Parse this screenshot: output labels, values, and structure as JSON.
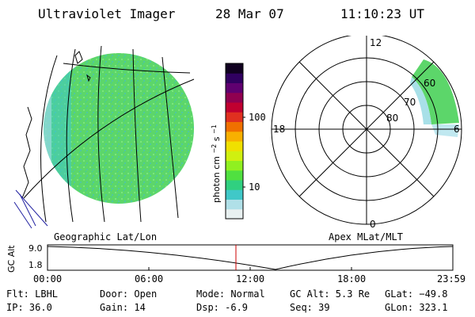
{
  "header": {
    "instrument": "Ultraviolet Imager",
    "date": "28 Mar 07",
    "time": "11:10:23 UT"
  },
  "colorbar": {
    "unit_label": "photon cm",
    "unit_exp1": "−2",
    "unit_s": "s",
    "unit_exp2": "−1",
    "tick_100": "100",
    "tick_10": "10",
    "colors": [
      "#e8f0f0",
      "#b0e0e8",
      "#40c8c8",
      "#30d080",
      "#50e040",
      "#90f020",
      "#d0f010",
      "#f0e000",
      "#f8b000",
      "#f07000",
      "#e03020",
      "#c00030",
      "#900050",
      "#600070",
      "#300060",
      "#100020"
    ]
  },
  "map_panel": {
    "label": "Geographic Lat/Lon",
    "disk_color": "#5cd66a"
  },
  "polar_panel": {
    "label": "Apex MLat/MLT",
    "mlt_labels": {
      "top": "12",
      "left": "18",
      "right": "6",
      "bottom": "0"
    },
    "lat_labels": {
      "l60": "60",
      "l70": "70",
      "l80": "80"
    }
  },
  "altitude_plot": {
    "y_axis_label": "GC Alt",
    "y_ticks": [
      "9.0",
      "1.8"
    ],
    "x_ticks": [
      "00:00",
      "06:00",
      "12:00",
      "18:00",
      "23:59"
    ],
    "current_time_marker_color": "#cc0000"
  },
  "info": {
    "flt": "Flt: LBHL",
    "ip": "IP: 36.0",
    "door": "Door: Open",
    "gain": "Gain: 14",
    "mode": "Mode: Normal",
    "dsp": "Dsp:    -6.9",
    "gcalt": "GC Alt: 5.3 Re",
    "seq": "Seq: 39",
    "glat": "GLat: −49.8",
    "glon": "GLon: 323.1"
  }
}
